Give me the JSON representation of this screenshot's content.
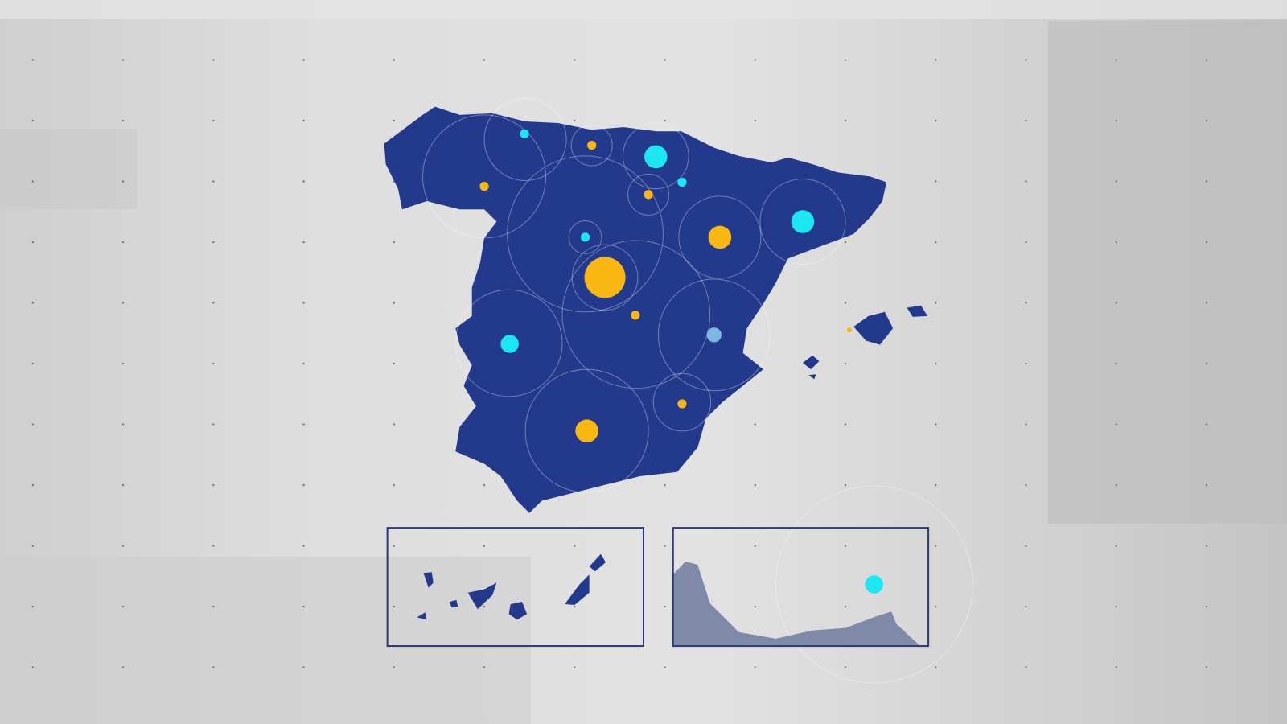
{
  "map": {
    "land_color": "#233a8c",
    "ring_color": "#ffffff",
    "inset_border_color": "#2b3a7a",
    "inset_land_color": "#7f8aa8",
    "marker_colors": {
      "yellow": "#f8b712",
      "cyan": "#1ce6f2",
      "light-blue": "#7ab8e0"
    },
    "markers": [
      {
        "region": "center",
        "color": "yellow",
        "size": "large"
      },
      {
        "region": "northeast-inland",
        "color": "yellow",
        "size": "medium"
      },
      {
        "region": "south",
        "color": "yellow",
        "size": "medium"
      },
      {
        "region": "northwest",
        "color": "yellow",
        "size": "small"
      },
      {
        "region": "north-coast",
        "color": "yellow",
        "size": "small"
      },
      {
        "region": "north-central",
        "color": "yellow",
        "size": "small"
      },
      {
        "region": "center-south",
        "color": "yellow",
        "size": "small"
      },
      {
        "region": "southeast",
        "color": "yellow",
        "size": "small"
      },
      {
        "region": "balearic",
        "color": "yellow",
        "size": "tiny"
      },
      {
        "region": "north",
        "color": "cyan",
        "size": "medium"
      },
      {
        "region": "northeast",
        "color": "cyan",
        "size": "medium"
      },
      {
        "region": "west",
        "color": "cyan",
        "size": "medium"
      },
      {
        "region": "north-inland",
        "color": "cyan",
        "size": "small"
      },
      {
        "region": "north-west-coast",
        "color": "cyan",
        "size": "small"
      },
      {
        "region": "north-east-coast",
        "color": "cyan",
        "size": "small"
      },
      {
        "region": "east",
        "color": "light-blue",
        "size": "medium"
      },
      {
        "region": "inset-north-africa",
        "color": "cyan",
        "size": "medium"
      }
    ],
    "insets": [
      {
        "name": "canary-islands"
      },
      {
        "name": "ceuta-melilla"
      }
    ]
  }
}
